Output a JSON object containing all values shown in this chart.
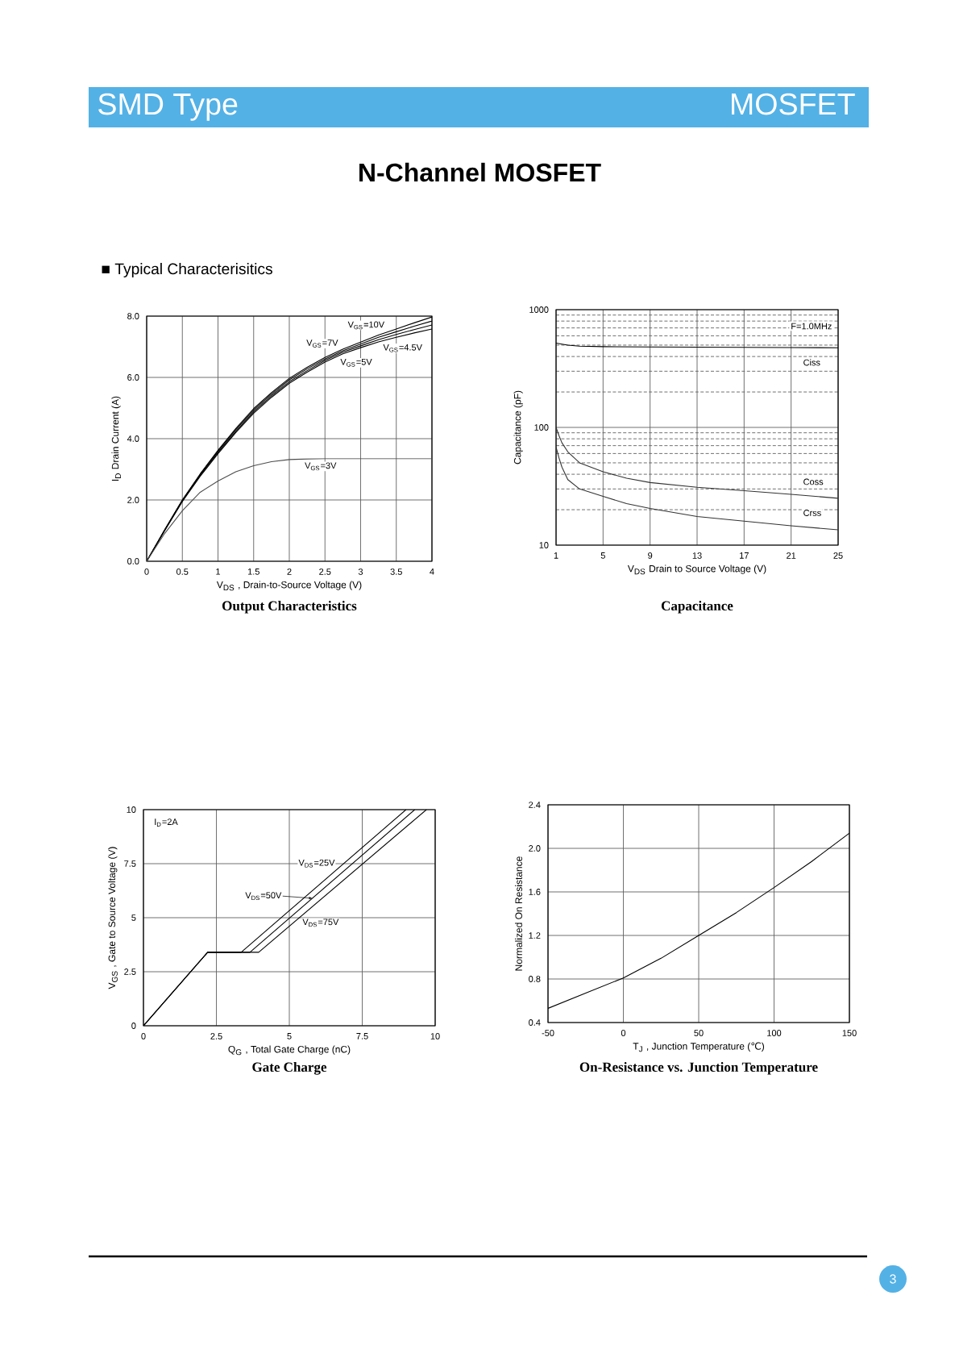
{
  "chart_data": [
    {
      "type": "other",
      "title": "N-Channel MOSFET",
      "annotations": [
        "SMD Type",
        "MOSFET",
        "■ Typical Characterisitics",
        "3"
      ]
    },
    {
      "type": "line",
      "title": "Output Characteristics",
      "xlabel": "V$_{DS}$ , Drain-to-Source Voltage (V)",
      "ylabel": "I$_{D}$ Drain Current (A)",
      "x": [
        0,
        0.25,
        0.5,
        0.75,
        1,
        1.25,
        1.5,
        1.75,
        2,
        2.25,
        2.5,
        2.75,
        3,
        3.25,
        3.5,
        3.75,
        4
      ],
      "xlim": [
        0,
        4
      ],
      "xticks": [
        0,
        0.5,
        1,
        1.5,
        2,
        2.5,
        3,
        3.5,
        4
      ],
      "ylim": [
        0,
        8
      ],
      "yticks": [
        {
          "value": 0,
          "label": "0.0"
        },
        {
          "value": 2,
          "label": "2.0"
        },
        {
          "value": 4,
          "label": "4.0"
        },
        {
          "value": 6,
          "label": "6.0"
        },
        {
          "value": 8,
          "label": "8.0"
        }
      ],
      "grid": true,
      "series": [
        {
          "name": "V$_{GS}$=10V",
          "color": "#000000",
          "values": [
            0,
            1.02,
            2.0,
            2.85,
            3.62,
            4.33,
            4.98,
            5.5,
            5.97,
            6.33,
            6.65,
            6.92,
            7.15,
            7.38,
            7.58,
            7.78,
            7.97
          ]
        },
        {
          "name": "V$_{GS}$=7V",
          "color": "#000000",
          "values": [
            0,
            1.01,
            1.99,
            2.83,
            3.59,
            4.29,
            4.93,
            5.45,
            5.92,
            6.28,
            6.6,
            6.87,
            7.09,
            7.31,
            7.49,
            7.67,
            7.84
          ]
        },
        {
          "name": "V$_{GS}$=5V",
          "color": "#000000",
          "values": [
            0,
            1.0,
            1.97,
            2.8,
            3.55,
            4.24,
            4.88,
            5.4,
            5.86,
            6.22,
            6.55,
            6.82,
            7.03,
            7.23,
            7.4,
            7.56,
            7.71
          ]
        },
        {
          "name": "V$_{GS}$=4.5V",
          "color": "#000000",
          "values": [
            0,
            0.99,
            1.95,
            2.77,
            3.51,
            4.2,
            4.83,
            5.35,
            5.81,
            6.17,
            6.5,
            6.77,
            6.97,
            7.16,
            7.31,
            7.45,
            7.58
          ]
        },
        {
          "name": "V$_{GS}$=3V",
          "color": "#4d4d4d",
          "values": [
            0,
            0.9,
            1.65,
            2.25,
            2.62,
            2.92,
            3.12,
            3.25,
            3.32,
            3.34,
            3.35,
            3.35,
            3.35,
            3.35,
            3.35,
            3.35,
            3.35
          ]
        }
      ]
    },
    {
      "type": "line",
      "title": "Capacitance",
      "xlabel": "V$_{DS}$ Drain to Source Voltage (V)",
      "ylabel": "Capacitance (pF)",
      "annotations": [
        "F=1.0MHz"
      ],
      "log": "y",
      "xlim": [
        1,
        25
      ],
      "xticks": [
        1,
        5,
        9,
        13,
        17,
        21,
        25
      ],
      "ylim": [
        10,
        1000
      ],
      "yticks": [
        10,
        100,
        1000
      ],
      "grid": true,
      "series": [
        {
          "name": "Ciss",
          "color": "#000000",
          "x": [
            1,
            2,
            3,
            5,
            9,
            13,
            17,
            21,
            25
          ],
          "values": [
            520,
            500,
            490,
            485,
            482,
            480,
            478,
            476,
            475
          ]
        },
        {
          "name": "Coss",
          "color": "#333333",
          "x": [
            1,
            1.25,
            1.5,
            2,
            3,
            5,
            7,
            9,
            13,
            17,
            21,
            25
          ],
          "values": [
            100,
            85,
            74,
            62,
            50,
            42,
            37,
            34,
            31,
            29,
            27,
            25
          ]
        },
        {
          "name": "Crss",
          "color": "#333333",
          "x": [
            1,
            1.25,
            1.5,
            2,
            3,
            5,
            7,
            9,
            13,
            17,
            21,
            25
          ],
          "values": [
            68,
            55,
            46,
            36,
            30,
            26,
            22.5,
            20.5,
            17.5,
            16,
            14.6,
            13.5
          ]
        }
      ]
    },
    {
      "type": "line",
      "title": "Gate Charge",
      "xlabel": "Q$_{G}$ , Total Gate Charge (nC)",
      "ylabel": "V$_{GS}$ , Gate to Source Voltage (V)",
      "annotations": [
        "I$_{D}$=2A"
      ],
      "xlim": [
        0,
        10
      ],
      "xticks": [
        0,
        2.5,
        5,
        7.5,
        10
      ],
      "ylim": [
        0,
        10
      ],
      "yticks": [
        0,
        2.5,
        5,
        7.5,
        10
      ],
      "grid": true,
      "series": [
        {
          "name": "V$_{DS}$=25V",
          "color": "#000000",
          "x": [
            0,
            2.2,
            3.35,
            9.0
          ],
          "values": [
            0,
            3.4,
            3.4,
            10
          ]
        },
        {
          "name": "V$_{DS}$=50V",
          "color": "#000000",
          "x": [
            0,
            2.2,
            3.65,
            9.3
          ],
          "values": [
            0,
            3.4,
            3.4,
            10
          ]
        },
        {
          "name": "V$_{DS}$=75V",
          "color": "#000000",
          "x": [
            0,
            2.2,
            3.95,
            9.7
          ],
          "values": [
            0,
            3.4,
            3.4,
            10
          ]
        }
      ]
    },
    {
      "type": "line",
      "title": "On-Resistance vs. Junction Temperature",
      "xlabel": "T$_{J}$ , Junction Temperature (℃)",
      "ylabel": "Normalized On Resistance",
      "x": [
        -50,
        -25,
        0,
        25,
        50,
        75,
        100,
        125,
        150
      ],
      "values": [
        0.53,
        0.67,
        0.81,
        0.99,
        1.2,
        1.41,
        1.64,
        1.88,
        2.14
      ],
      "color": "#000000",
      "xlim": [
        -50,
        150
      ],
      "xticks": [
        -50,
        0,
        50,
        100,
        150
      ],
      "ylim": [
        0.4,
        2.4
      ],
      "yticks": [
        0.4,
        0.8,
        1.2,
        1.6,
        {
          "value": 2,
          "label": "2.0"
        },
        2.4
      ],
      "grid": true
    }
  ]
}
